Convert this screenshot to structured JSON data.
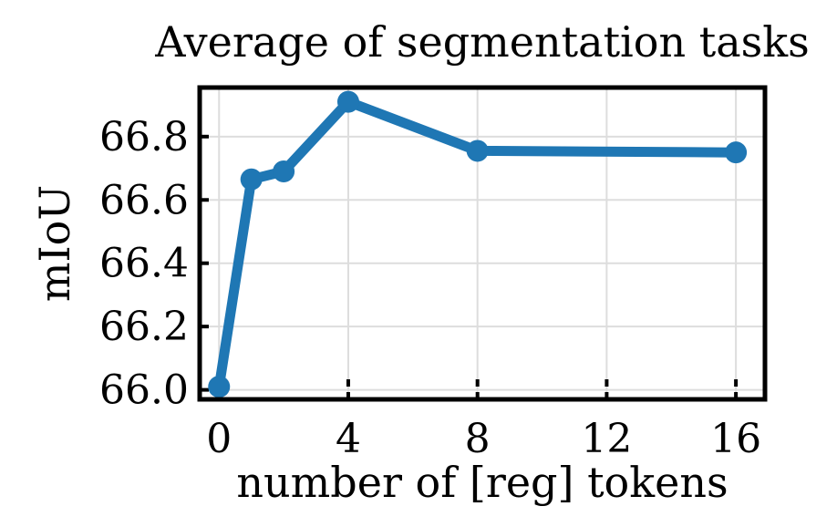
{
  "chart_data": {
    "type": "line",
    "title": "Average of segmentation tasks",
    "xlabel": "number of [reg] tokens",
    "ylabel": "mIoU",
    "xlim": [
      -0.6,
      16.9
    ],
    "ylim": [
      65.97,
      66.955
    ],
    "xticks": [
      0,
      4,
      8,
      12,
      16
    ],
    "yticks": [
      66.0,
      66.2,
      66.4,
      66.6,
      66.8
    ],
    "ytick_labels": [
      "66.0",
      "66.2",
      "66.4",
      "66.6",
      "66.8"
    ],
    "grid": true,
    "series": [
      {
        "color": "#1f77b4",
        "x": [
          0,
          1,
          2,
          4,
          8,
          16
        ],
        "y": [
          66.01,
          66.665,
          66.69,
          66.91,
          66.755,
          66.75
        ]
      }
    ]
  }
}
